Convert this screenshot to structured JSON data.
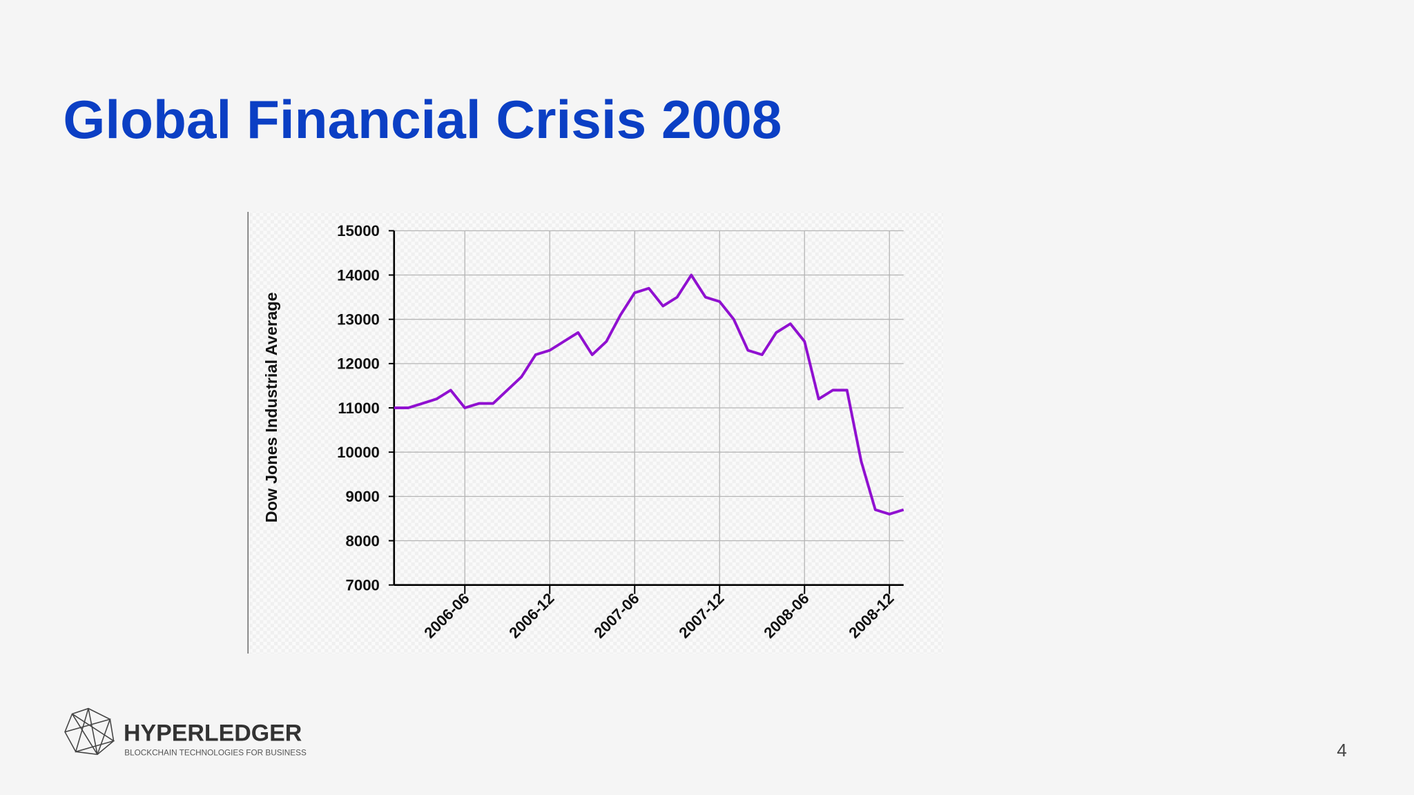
{
  "slide": {
    "title": "Global Financial Crisis 2008",
    "page_number": 4
  },
  "logo": {
    "name": "HYPERLEDGER",
    "tagline": "BLOCKCHAIN TECHNOLOGIES FOR BUSINESS"
  },
  "chart_data": {
    "type": "line",
    "y_label": "Dow Jones Industrial Average",
    "x": [
      "2006-01",
      "2006-02",
      "2006-03",
      "2006-04",
      "2006-05",
      "2006-06",
      "2006-07",
      "2006-08",
      "2006-09",
      "2006-10",
      "2006-11",
      "2006-12",
      "2007-01",
      "2007-02",
      "2007-03",
      "2007-04",
      "2007-05",
      "2007-06",
      "2007-07",
      "2007-08",
      "2007-09",
      "2007-10",
      "2007-11",
      "2007-12",
      "2008-01",
      "2008-02",
      "2008-03",
      "2008-04",
      "2008-05",
      "2008-06",
      "2008-07",
      "2008-08",
      "2008-09",
      "2008-10",
      "2008-11",
      "2008-12",
      "2009-01"
    ],
    "values": [
      11000,
      11000,
      11100,
      11200,
      11400,
      11000,
      11100,
      11100,
      11400,
      11700,
      12200,
      12300,
      12500,
      12700,
      12200,
      12500,
      13100,
      13600,
      13700,
      13300,
      13500,
      14000,
      13500,
      13400,
      13000,
      12300,
      12200,
      12700,
      12900,
      12500,
      11200,
      11400,
      11400,
      9800,
      8700,
      8600,
      8700
    ],
    "color": "#9010d0",
    "xlim": [
      "2006-01",
      "2009-01"
    ],
    "xticks": [
      "2006-06",
      "2006-12",
      "2007-06",
      "2007-12",
      "2008-06",
      "2008-12"
    ],
    "ylim": [
      7000,
      15000
    ],
    "yticks": [
      7000,
      8000,
      9000,
      10000,
      11000,
      12000,
      13000,
      14000,
      15000
    ],
    "grid": true
  }
}
